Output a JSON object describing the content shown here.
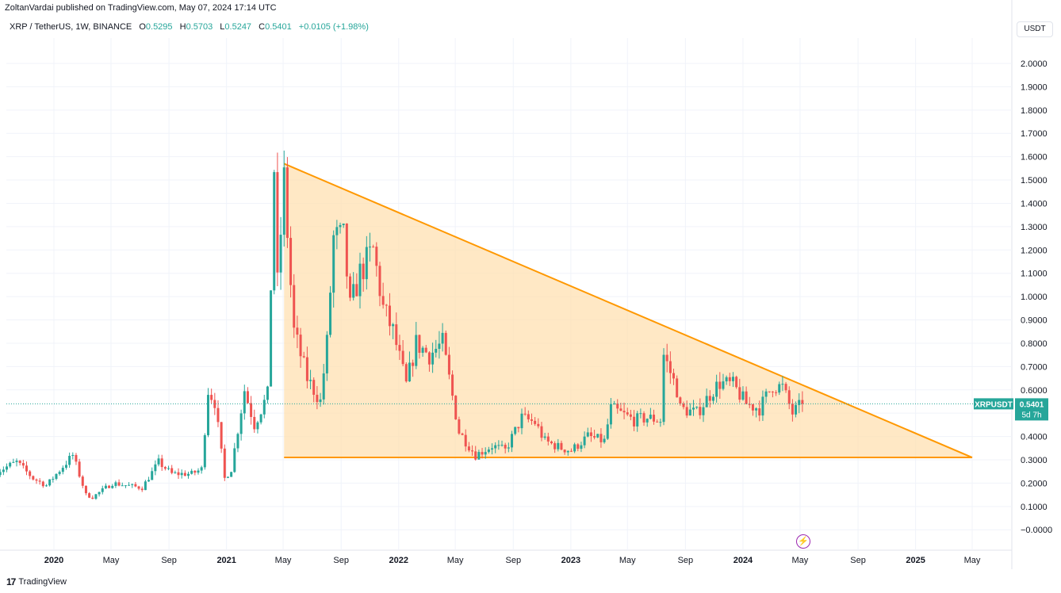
{
  "publisher": "ZoltanVardai published on TradingView.com, May 07, 2024 17:14 UTC",
  "legend": {
    "symbol": "XRP / TetherUS, 1W, BINANCE",
    "o_label": "O",
    "o_value": "0.5295",
    "h_label": "H",
    "h_value": "0.5703",
    "l_label": "L",
    "l_value": "0.5247",
    "c_label": "C",
    "c_value": "0.5401",
    "change": "+0.0105 (+1.98%)"
  },
  "currency_button": "USDT",
  "price_tag": {
    "ticker": "XRPUSDT",
    "price": "0.5401",
    "countdown": "5d 7h"
  },
  "footer": {
    "logo": "17",
    "brand": "TradingView"
  },
  "colors": {
    "up": "#26a69a",
    "down": "#ef5350",
    "triangle_line": "#ff9800",
    "triangle_fill": "#ffe0b2",
    "grid": "#f0f3fa",
    "axis_text": "#131722"
  },
  "chart_data": {
    "type": "candlestick",
    "symbol": "XRPUSDT",
    "interval": "1W",
    "y_ticks": [
      "2.0000",
      "1.9000",
      "1.8000",
      "1.7000",
      "1.6000",
      "1.5000",
      "1.4000",
      "1.3000",
      "1.2000",
      "1.1000",
      "1.0000",
      "0.9000",
      "0.8000",
      "0.7000",
      "0.6000",
      "0.5000",
      "0.4000",
      "0.3000",
      "0.2000",
      "0.1000",
      "−0.0000"
    ],
    "ylim": [
      -0.05,
      2.08
    ],
    "x_ticks": [
      {
        "label": "2020",
        "date": "2020-01-01",
        "bold": true
      },
      {
        "label": "May",
        "date": "2020-05-01"
      },
      {
        "label": "Sep",
        "date": "2020-09-01"
      },
      {
        "label": "2021",
        "date": "2021-01-01",
        "bold": true
      },
      {
        "label": "May",
        "date": "2021-05-01"
      },
      {
        "label": "Sep",
        "date": "2021-09-01"
      },
      {
        "label": "2022",
        "date": "2022-01-01",
        "bold": true
      },
      {
        "label": "May",
        "date": "2022-05-01"
      },
      {
        "label": "Sep",
        "date": "2022-09-01"
      },
      {
        "label": "2023",
        "date": "2023-01-01",
        "bold": true
      },
      {
        "label": "May",
        "date": "2023-05-01"
      },
      {
        "label": "Sep",
        "date": "2023-09-01"
      },
      {
        "label": "2024",
        "date": "2024-01-01",
        "bold": true
      },
      {
        "label": "May",
        "date": "2024-05-01"
      },
      {
        "label": "Sep",
        "date": "2024-09-01"
      },
      {
        "label": "2025",
        "date": "2025-01-01",
        "bold": true
      },
      {
        "label": "May",
        "date": "2025-05-01"
      }
    ],
    "last_price": 0.5401,
    "triangle": {
      "upper_start": {
        "date": "2021-05-03",
        "price": 1.57
      },
      "apex": {
        "date": "2025-05-01",
        "price": 0.31
      },
      "lower_start": {
        "date": "2021-05-03",
        "price": 0.31
      }
    },
    "close_path": [
      {
        "date": "2019-09-02",
        "price": 0.25
      },
      {
        "date": "2019-10-14",
        "price": 0.29
      },
      {
        "date": "2019-11-18",
        "price": 0.22
      },
      {
        "date": "2019-12-16",
        "price": 0.19
      },
      {
        "date": "2020-02-10",
        "price": 0.32
      },
      {
        "date": "2020-03-09",
        "price": 0.15
      },
      {
        "date": "2020-03-23",
        "price": 0.14
      },
      {
        "date": "2020-05-04",
        "price": 0.2
      },
      {
        "date": "2020-07-06",
        "price": 0.18
      },
      {
        "date": "2020-08-10",
        "price": 0.29
      },
      {
        "date": "2020-09-07",
        "price": 0.24
      },
      {
        "date": "2020-10-19",
        "price": 0.24
      },
      {
        "date": "2020-11-09",
        "price": 0.26
      },
      {
        "date": "2020-11-23",
        "price": 0.6
      },
      {
        "date": "2020-12-07",
        "price": 0.55
      },
      {
        "date": "2020-12-28",
        "price": 0.22
      },
      {
        "date": "2021-01-11",
        "price": 0.26
      },
      {
        "date": "2021-02-08",
        "price": 0.6
      },
      {
        "date": "2021-03-01",
        "price": 0.45
      },
      {
        "date": "2021-03-29",
        "price": 0.58
      },
      {
        "date": "2021-04-05",
        "price": 1.05
      },
      {
        "date": "2021-04-12",
        "price": 1.55
      },
      {
        "date": "2021-04-19",
        "price": 1.05
      },
      {
        "date": "2021-05-03",
        "price": 1.5
      },
      {
        "date": "2021-05-17",
        "price": 1.05
      },
      {
        "date": "2021-05-24",
        "price": 0.85
      },
      {
        "date": "2021-06-21",
        "price": 0.65
      },
      {
        "date": "2021-07-19",
        "price": 0.55
      },
      {
        "date": "2021-08-02",
        "price": 0.8
      },
      {
        "date": "2021-08-16",
        "price": 1.25
      },
      {
        "date": "2021-09-06",
        "price": 1.25
      },
      {
        "date": "2021-09-20",
        "price": 0.95
      },
      {
        "date": "2021-10-11",
        "price": 1.1
      },
      {
        "date": "2021-11-08",
        "price": 1.2
      },
      {
        "date": "2021-11-29",
        "price": 0.95
      },
      {
        "date": "2021-12-20",
        "price": 0.85
      },
      {
        "date": "2022-01-17",
        "price": 0.62
      },
      {
        "date": "2022-02-07",
        "price": 0.8
      },
      {
        "date": "2022-03-07",
        "price": 0.75
      },
      {
        "date": "2022-04-04",
        "price": 0.8
      },
      {
        "date": "2022-05-09",
        "price": 0.42
      },
      {
        "date": "2022-06-13",
        "price": 0.32
      },
      {
        "date": "2022-07-18",
        "price": 0.36
      },
      {
        "date": "2022-08-15",
        "price": 0.34
      },
      {
        "date": "2022-09-19",
        "price": 0.48
      },
      {
        "date": "2022-10-17",
        "price": 0.46
      },
      {
        "date": "2022-11-07",
        "price": 0.38
      },
      {
        "date": "2022-12-12",
        "price": 0.35
      },
      {
        "date": "2023-01-02",
        "price": 0.34
      },
      {
        "date": "2023-02-06",
        "price": 0.4
      },
      {
        "date": "2023-03-13",
        "price": 0.38
      },
      {
        "date": "2023-03-27",
        "price": 0.52
      },
      {
        "date": "2023-05-15",
        "price": 0.47
      },
      {
        "date": "2023-06-12",
        "price": 0.48
      },
      {
        "date": "2023-07-10",
        "price": 0.47
      },
      {
        "date": "2023-07-17",
        "price": 0.75
      },
      {
        "date": "2023-08-14",
        "price": 0.6
      },
      {
        "date": "2023-08-21",
        "price": 0.52
      },
      {
        "date": "2023-09-25",
        "price": 0.5
      },
      {
        "date": "2023-10-30",
        "price": 0.6
      },
      {
        "date": "2023-11-13",
        "price": 0.63
      },
      {
        "date": "2023-12-11",
        "price": 0.62
      },
      {
        "date": "2024-01-08",
        "price": 0.54
      },
      {
        "date": "2024-02-05",
        "price": 0.52
      },
      {
        "date": "2024-03-04",
        "price": 0.62
      },
      {
        "date": "2024-03-25",
        "price": 0.61
      },
      {
        "date": "2024-04-15",
        "price": 0.5
      },
      {
        "date": "2024-05-06",
        "price": 0.54
      }
    ]
  }
}
